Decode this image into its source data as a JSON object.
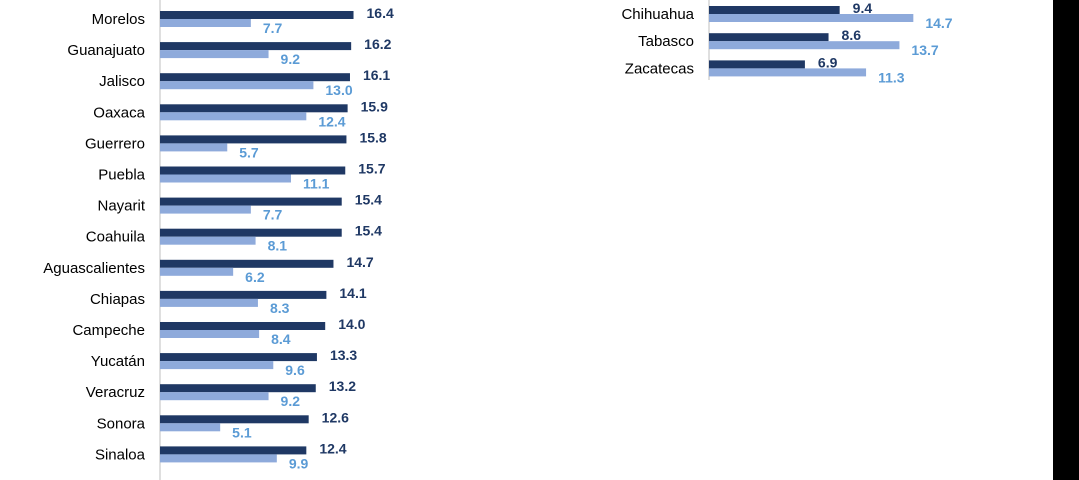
{
  "colors": {
    "series_dark": "#1f3864",
    "series_light": "#8eaadb",
    "label_dark": "#1f3864",
    "label_light": "#5b9bd5",
    "axis": "#bfbfbf"
  },
  "chart_data": [
    {
      "type": "bar",
      "orientation": "horizontal",
      "title": "",
      "xlabel": "",
      "ylabel": "",
      "grid": false,
      "legend": "none",
      "categories": [
        "Morelos",
        "Guanajuato",
        "Jalisco",
        "Oaxaca",
        "Guerrero",
        "Puebla",
        "Nayarit",
        "Coahuila",
        "Aguascalientes",
        "Chiapas",
        "Campeche",
        "Yucatán",
        "Veracruz",
        "Sonora",
        "Sinaloa"
      ],
      "series": [
        {
          "values": [
            16.4,
            16.2,
            16.1,
            15.9,
            15.8,
            15.7,
            15.4,
            15.4,
            14.7,
            14.1,
            14.0,
            13.3,
            13.2,
            12.6,
            12.4
          ]
        },
        {
          "values": [
            7.7,
            9.2,
            13.0,
            12.4,
            5.7,
            11.1,
            7.7,
            8.1,
            6.2,
            8.3,
            8.4,
            9.6,
            9.2,
            5.1,
            9.9
          ]
        }
      ]
    },
    {
      "type": "bar",
      "orientation": "horizontal",
      "title": "",
      "xlabel": "",
      "ylabel": "",
      "grid": false,
      "legend": "none",
      "categories": [
        "Chihuahua",
        "Tabasco",
        "Zacatecas"
      ],
      "series": [
        {
          "values": [
            9.4,
            8.6,
            6.9
          ]
        },
        {
          "values": [
            14.7,
            13.7,
            11.3
          ]
        }
      ]
    }
  ]
}
